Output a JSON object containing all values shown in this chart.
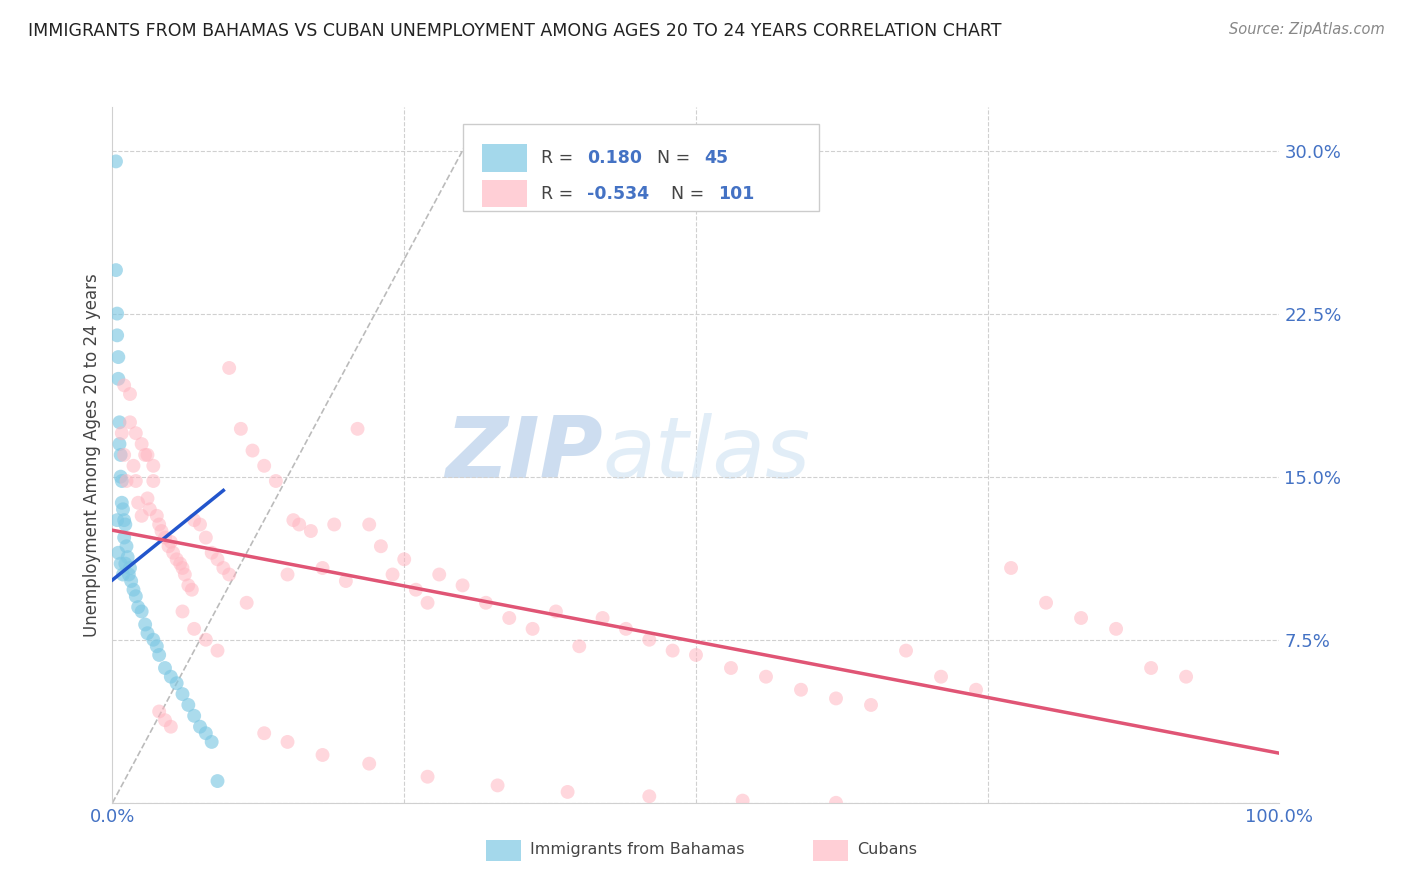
{
  "title": "IMMIGRANTS FROM BAHAMAS VS CUBAN UNEMPLOYMENT AMONG AGES 20 TO 24 YEARS CORRELATION CHART",
  "source": "Source: ZipAtlas.com",
  "ylabel": "Unemployment Among Ages 20 to 24 years",
  "xlim": [
    0.0,
    1.0
  ],
  "ylim": [
    0.0,
    0.32
  ],
  "yticks": [
    0.0,
    0.075,
    0.15,
    0.225,
    0.3
  ],
  "ytick_labels": [
    "",
    "7.5%",
    "15.0%",
    "22.5%",
    "30.0%"
  ],
  "color_bahamas": "#7ec8e3",
  "color_cuban": "#ffb6c1",
  "color_trend_bahamas": "#2255cc",
  "color_trend_cuban": "#e05575",
  "color_diag": "#bbbbbb",
  "watermark_zip": "ZIP",
  "watermark_atlas": "atlas",
  "bahamas_x": [
    0.003,
    0.003,
    0.004,
    0.004,
    0.004,
    0.005,
    0.005,
    0.005,
    0.006,
    0.006,
    0.007,
    0.007,
    0.007,
    0.008,
    0.008,
    0.009,
    0.009,
    0.01,
    0.01,
    0.011,
    0.011,
    0.012,
    0.013,
    0.014,
    0.015,
    0.016,
    0.018,
    0.02,
    0.022,
    0.025,
    0.028,
    0.03,
    0.035,
    0.038,
    0.04,
    0.045,
    0.05,
    0.055,
    0.06,
    0.065,
    0.07,
    0.075,
    0.08,
    0.085,
    0.09
  ],
  "bahamas_y": [
    0.295,
    0.245,
    0.225,
    0.215,
    0.13,
    0.205,
    0.195,
    0.115,
    0.175,
    0.165,
    0.16,
    0.15,
    0.11,
    0.148,
    0.138,
    0.135,
    0.105,
    0.13,
    0.122,
    0.128,
    0.11,
    0.118,
    0.113,
    0.105,
    0.108,
    0.102,
    0.098,
    0.095,
    0.09,
    0.088,
    0.082,
    0.078,
    0.075,
    0.072,
    0.068,
    0.062,
    0.058,
    0.055,
    0.05,
    0.045,
    0.04,
    0.035,
    0.032,
    0.028,
    0.01
  ],
  "cuban_x": [
    0.008,
    0.01,
    0.012,
    0.015,
    0.018,
    0.02,
    0.022,
    0.025,
    0.028,
    0.03,
    0.032,
    0.035,
    0.038,
    0.04,
    0.042,
    0.045,
    0.048,
    0.05,
    0.052,
    0.055,
    0.058,
    0.06,
    0.062,
    0.065,
    0.068,
    0.07,
    0.075,
    0.08,
    0.085,
    0.09,
    0.095,
    0.1,
    0.11,
    0.12,
    0.13,
    0.14,
    0.15,
    0.155,
    0.16,
    0.17,
    0.18,
    0.19,
    0.2,
    0.21,
    0.22,
    0.23,
    0.24,
    0.25,
    0.26,
    0.27,
    0.28,
    0.3,
    0.32,
    0.34,
    0.36,
    0.38,
    0.4,
    0.42,
    0.44,
    0.46,
    0.48,
    0.5,
    0.53,
    0.56,
    0.59,
    0.62,
    0.65,
    0.68,
    0.71,
    0.74,
    0.77,
    0.8,
    0.83,
    0.86,
    0.89,
    0.92,
    0.01,
    0.015,
    0.02,
    0.025,
    0.03,
    0.035,
    0.04,
    0.045,
    0.05,
    0.06,
    0.07,
    0.08,
    0.09,
    0.1,
    0.115,
    0.13,
    0.15,
    0.18,
    0.22,
    0.27,
    0.33,
    0.39,
    0.46,
    0.54,
    0.62
  ],
  "cuban_y": [
    0.17,
    0.16,
    0.148,
    0.175,
    0.155,
    0.148,
    0.138,
    0.132,
    0.16,
    0.14,
    0.135,
    0.148,
    0.132,
    0.128,
    0.125,
    0.122,
    0.118,
    0.12,
    0.115,
    0.112,
    0.11,
    0.108,
    0.105,
    0.1,
    0.098,
    0.13,
    0.128,
    0.122,
    0.115,
    0.112,
    0.108,
    0.2,
    0.172,
    0.162,
    0.155,
    0.148,
    0.105,
    0.13,
    0.128,
    0.125,
    0.108,
    0.128,
    0.102,
    0.172,
    0.128,
    0.118,
    0.105,
    0.112,
    0.098,
    0.092,
    0.105,
    0.1,
    0.092,
    0.085,
    0.08,
    0.088,
    0.072,
    0.085,
    0.08,
    0.075,
    0.07,
    0.068,
    0.062,
    0.058,
    0.052,
    0.048,
    0.045,
    0.07,
    0.058,
    0.052,
    0.108,
    0.092,
    0.085,
    0.08,
    0.062,
    0.058,
    0.192,
    0.188,
    0.17,
    0.165,
    0.16,
    0.155,
    0.042,
    0.038,
    0.035,
    0.088,
    0.08,
    0.075,
    0.07,
    0.105,
    0.092,
    0.032,
    0.028,
    0.022,
    0.018,
    0.012,
    0.008,
    0.005,
    0.003,
    0.001,
    0.0
  ]
}
